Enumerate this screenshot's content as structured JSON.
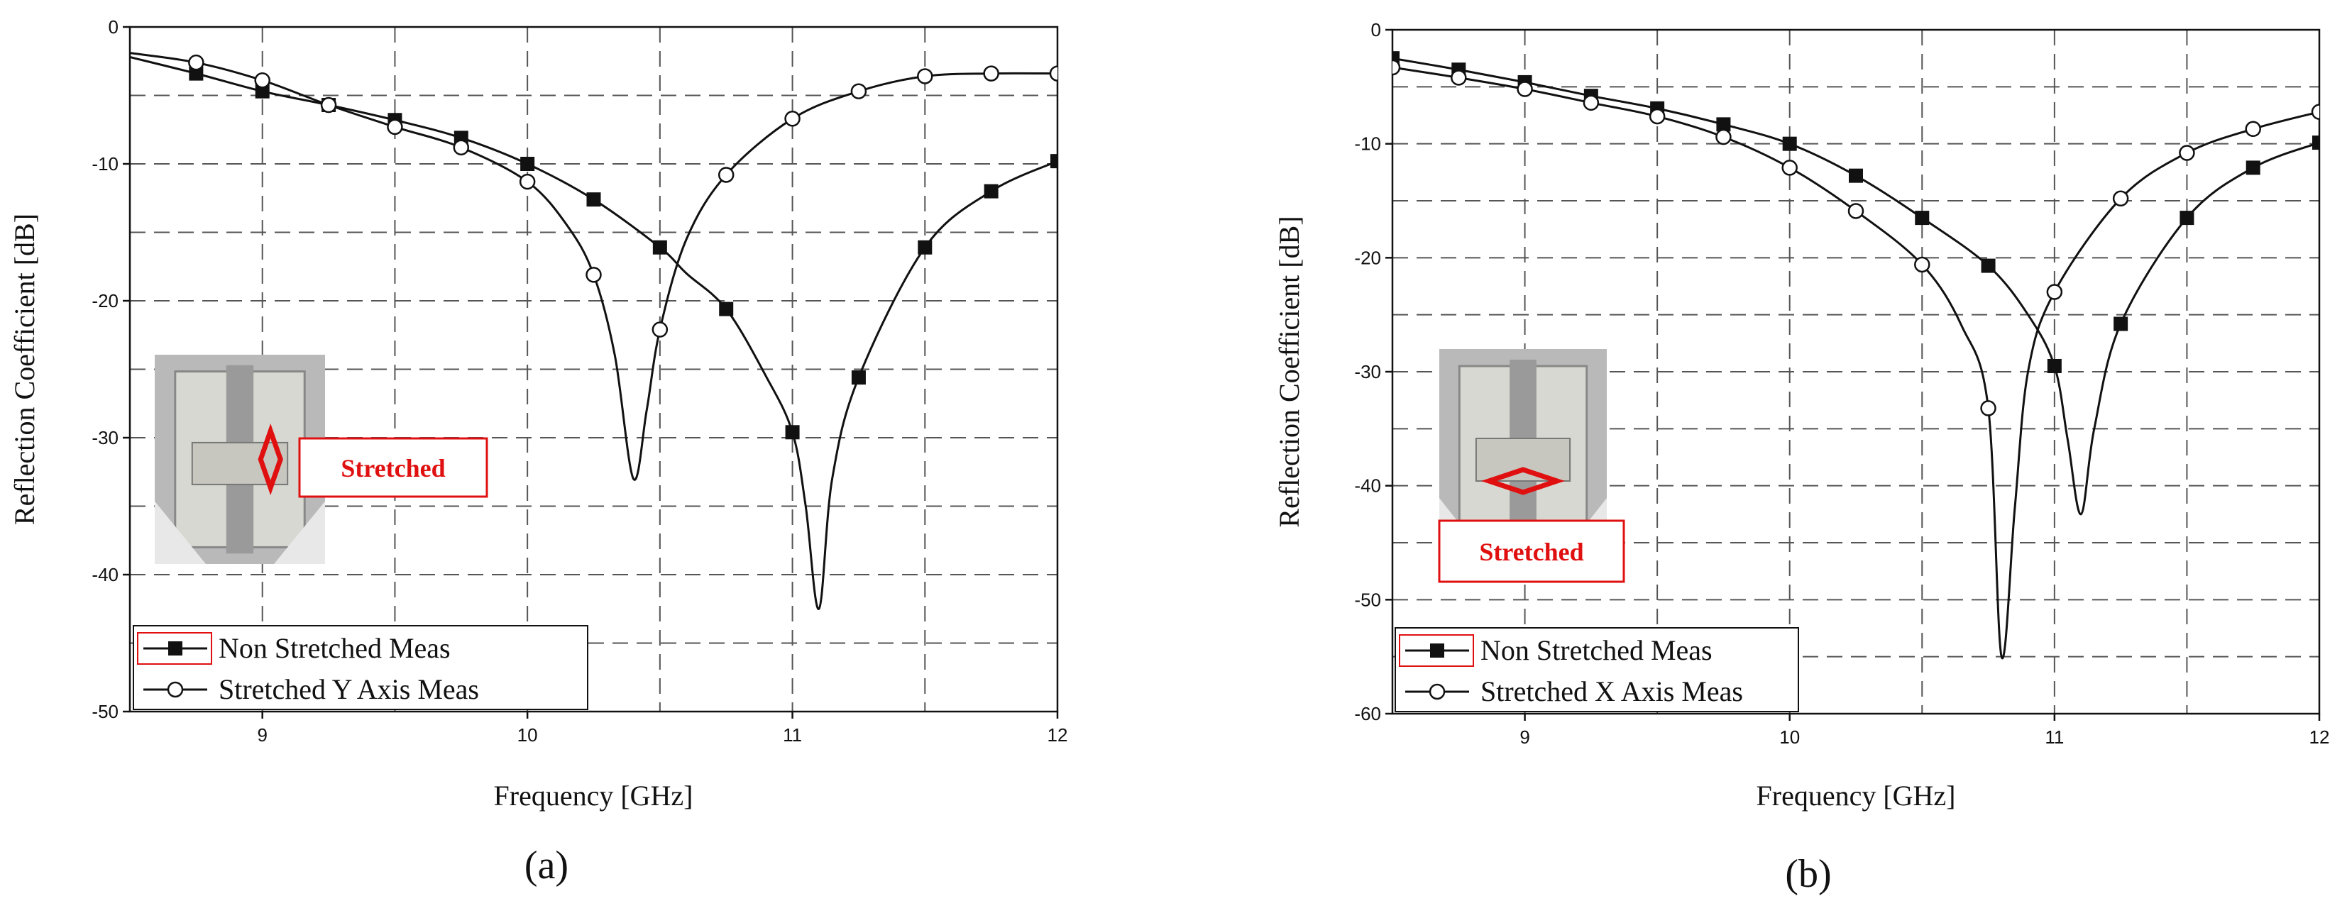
{
  "chart_data": [
    {
      "type": "line",
      "panel_label": "(a)",
      "xlabel": "Frequency [GHz]",
      "ylabel": "Reflection Coefficient [dB]",
      "xlim": [
        8.5,
        12
      ],
      "ylim": [
        -50,
        0
      ],
      "xticks": [
        9,
        10,
        11,
        12
      ],
      "yticks": [
        0,
        -10,
        -20,
        -30,
        -40,
        -50
      ],
      "grid": true,
      "legend_position": "bottom-left",
      "inset_label": "Stretched",
      "inset_arrow": "vertical",
      "series": [
        {
          "name": "Non Stretched Meas",
          "marker": "filled-square",
          "curve_x": [
            8.5,
            8.75,
            9.0,
            9.25,
            9.5,
            9.75,
            10.0,
            10.25,
            10.5,
            10.6,
            10.75,
            10.9,
            11.0,
            11.05,
            11.1,
            11.15,
            11.25,
            11.5,
            11.75,
            12.0
          ],
          "curve_y": [
            -2.2,
            -3.4,
            -4.7,
            -5.7,
            -6.8,
            -8.1,
            -10.0,
            -12.6,
            -16.1,
            -18.0,
            -20.6,
            -25.5,
            -29.6,
            -35.0,
            -42.5,
            -33.0,
            -25.6,
            -16.1,
            -12.0,
            -9.8
          ],
          "markers_x": [
            8.75,
            9.0,
            9.25,
            9.5,
            9.75,
            10.0,
            10.25,
            10.5,
            10.75,
            11.0,
            11.25,
            11.5,
            11.75,
            12.0
          ],
          "markers_y": [
            -3.4,
            -4.7,
            -5.7,
            -6.8,
            -8.1,
            -10.0,
            -12.6,
            -16.1,
            -20.6,
            -29.6,
            -25.6,
            -16.1,
            -12.0,
            -9.8
          ]
        },
        {
          "name": "Stretched Y Axis Meas",
          "marker": "open-circle",
          "curve_x": [
            8.5,
            8.75,
            9.0,
            9.25,
            9.5,
            9.75,
            10.0,
            10.15,
            10.25,
            10.33,
            10.4,
            10.45,
            10.5,
            10.6,
            10.75,
            11.0,
            11.25,
            11.5,
            11.75,
            12.0
          ],
          "curve_y": [
            -1.9,
            -2.6,
            -3.9,
            -5.7,
            -7.3,
            -8.8,
            -11.3,
            -14.5,
            -18.1,
            -24.0,
            -33.0,
            -28.0,
            -22.1,
            -15.5,
            -10.8,
            -6.7,
            -4.7,
            -3.6,
            -3.4,
            -3.4
          ],
          "markers_x": [
            8.75,
            9.0,
            9.25,
            9.5,
            9.75,
            10.0,
            10.25,
            10.5,
            10.75,
            11.0,
            11.25,
            11.5,
            11.75,
            12.0
          ],
          "markers_y": [
            -2.6,
            -3.9,
            -5.7,
            -7.3,
            -8.8,
            -11.3,
            -18.1,
            -22.1,
            -10.8,
            -6.7,
            -4.7,
            -3.6,
            -3.4,
            -3.4
          ]
        }
      ]
    },
    {
      "type": "line",
      "panel_label": "(b)",
      "xlabel": "Frequency [GHz]",
      "ylabel": "Reflection Coefficient [dB]",
      "xlim": [
        8.5,
        12
      ],
      "ylim": [
        -60,
        0
      ],
      "xticks": [
        9,
        10,
        11,
        12
      ],
      "yticks": [
        0,
        -10,
        -20,
        -30,
        -40,
        -50,
        -60
      ],
      "grid": true,
      "legend_position": "bottom-left",
      "inset_label": "Stretched",
      "inset_arrow": "horizontal",
      "series": [
        {
          "name": "Non Stretched Meas",
          "marker": "filled-square",
          "curve_x": [
            8.5,
            8.75,
            9.0,
            9.25,
            9.5,
            9.75,
            10.0,
            10.25,
            10.5,
            10.75,
            10.9,
            11.0,
            11.05,
            11.1,
            11.15,
            11.25,
            11.5,
            11.75,
            12.0
          ],
          "curve_y": [
            -2.5,
            -3.5,
            -4.6,
            -5.8,
            -6.9,
            -8.3,
            -10.0,
            -12.8,
            -16.5,
            -20.7,
            -25.0,
            -29.5,
            -36.0,
            -42.5,
            -35.0,
            -25.8,
            -16.5,
            -12.1,
            -9.9
          ],
          "markers_x": [
            8.5,
            8.75,
            9.0,
            9.25,
            9.5,
            9.75,
            10.0,
            10.25,
            10.5,
            10.75,
            11.0,
            11.25,
            11.5,
            11.75,
            12.0
          ],
          "markers_y": [
            -2.5,
            -3.5,
            -4.6,
            -5.8,
            -6.9,
            -8.3,
            -10.0,
            -12.8,
            -16.5,
            -20.7,
            -29.5,
            -25.8,
            -16.5,
            -12.1,
            -9.9
          ]
        },
        {
          "name": "Stretched X Axis Meas",
          "marker": "open-circle",
          "curve_x": [
            8.5,
            8.75,
            9.0,
            9.25,
            9.5,
            9.75,
            10.0,
            10.25,
            10.5,
            10.65,
            10.75,
            10.8,
            10.85,
            10.9,
            11.0,
            11.25,
            11.5,
            11.75,
            12.0
          ],
          "curve_y": [
            -3.3,
            -4.2,
            -5.2,
            -6.4,
            -7.6,
            -9.4,
            -12.1,
            -15.9,
            -20.6,
            -26.0,
            -33.2,
            -55.0,
            -42.0,
            -30.0,
            -23.0,
            -14.8,
            -10.8,
            -8.7,
            -7.2
          ],
          "markers_x": [
            8.5,
            8.75,
            9.0,
            9.25,
            9.5,
            9.75,
            10.0,
            10.25,
            10.5,
            10.75,
            11.0,
            11.25,
            11.5,
            11.75,
            12.0
          ],
          "markers_y": [
            -3.3,
            -4.2,
            -5.2,
            -6.4,
            -7.6,
            -9.4,
            -12.1,
            -15.9,
            -20.6,
            -33.2,
            -23.0,
            -14.8,
            -10.8,
            -8.7,
            -7.2
          ]
        }
      ]
    }
  ]
}
